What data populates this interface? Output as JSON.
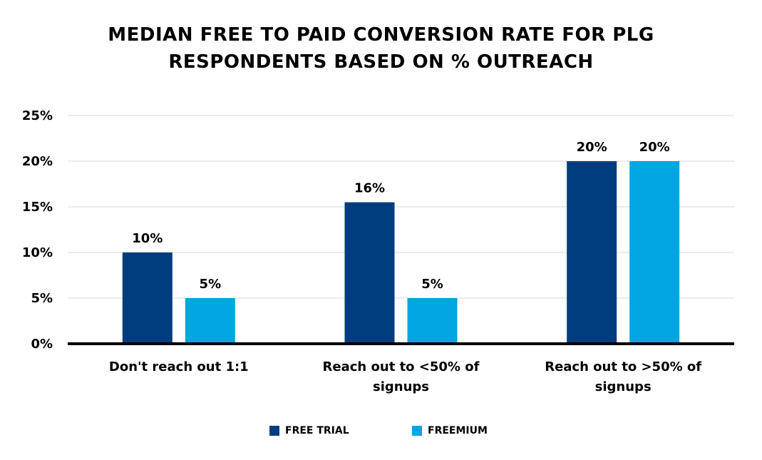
{
  "chart_data": {
    "type": "bar",
    "title_lines": [
      "MEDIAN FREE TO PAID CONVERSION RATE FOR PLG",
      "RESPONDENTS BASED ON % OUTREACH"
    ],
    "categories": [
      [
        "Don't reach out 1:1"
      ],
      [
        "Reach out to <50% of",
        "signups"
      ],
      [
        "Reach out to >50% of",
        "signups"
      ]
    ],
    "series": [
      {
        "name": "FREE TRIAL",
        "color": "#003d7f",
        "values": [
          10,
          15.5,
          20
        ],
        "labels": [
          "10%",
          "16%",
          "20%"
        ]
      },
      {
        "name": "FREEMIUM",
        "color": "#00a6df",
        "values": [
          5,
          5,
          20
        ],
        "labels": [
          "5%",
          "5%",
          "20%"
        ]
      }
    ],
    "yticks": [
      "0%",
      "5%",
      "10%",
      "15%",
      "20%",
      "25%"
    ],
    "ylim": [
      0,
      25
    ],
    "grid": true,
    "legend_position": "bottom"
  }
}
